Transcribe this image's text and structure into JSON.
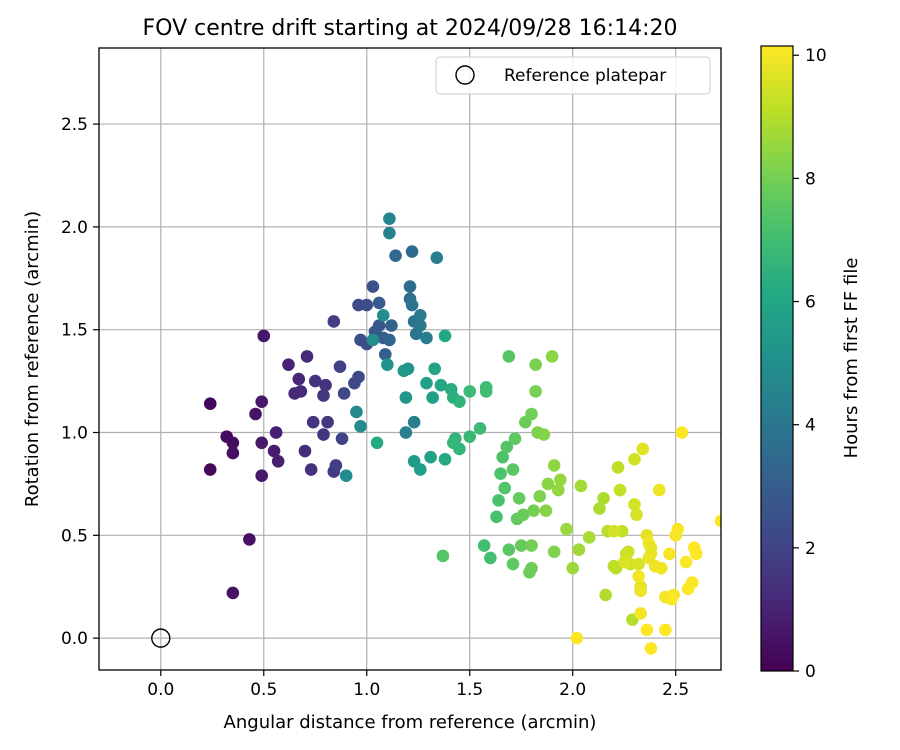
{
  "chart_data": {
    "type": "scatter",
    "title": "FOV centre drift starting at 2024/09/28 16:14:20",
    "xlabel": "Angular distance from reference (arcmin)",
    "ylabel": "Rotation from reference (arcmin)",
    "xlim": [
      -0.3,
      2.72
    ],
    "ylim": [
      -0.155,
      2.87
    ],
    "xticks": [
      0.0,
      0.5,
      1.0,
      1.5,
      2.0,
      2.5
    ],
    "yticks": [
      0.0,
      0.5,
      1.0,
      1.5,
      2.0,
      2.5
    ],
    "grid": true,
    "legend": {
      "placement": "top-right",
      "entries": [
        "Reference platepar"
      ]
    },
    "reference_point": {
      "x": 0.0,
      "y": 0.0,
      "marker": "open-circle",
      "label": "Reference platepar"
    },
    "colorbar": {
      "label": "Hours from first FF file",
      "min": 0,
      "max": 10.15,
      "ticks": [
        0,
        2,
        4,
        6,
        8,
        10
      ],
      "colormap": "viridis"
    },
    "points": [
      [
        0.24,
        1.14,
        0.15
      ],
      [
        0.24,
        0.82,
        0.2
      ],
      [
        0.32,
        0.98,
        0.3
      ],
      [
        0.35,
        0.95,
        0.35
      ],
      [
        0.35,
        0.9,
        0.4
      ],
      [
        0.43,
        0.48,
        0.45
      ],
      [
        0.35,
        0.22,
        0.5
      ],
      [
        0.46,
        1.09,
        0.55
      ],
      [
        0.49,
        1.15,
        0.65
      ],
      [
        0.5,
        1.47,
        0.6
      ],
      [
        0.49,
        0.95,
        0.7
      ],
      [
        0.49,
        0.79,
        0.75
      ],
      [
        0.55,
        0.91,
        0.8
      ],
      [
        0.56,
        1.0,
        0.85
      ],
      [
        0.57,
        0.86,
        0.9
      ],
      [
        0.62,
        1.33,
        1.0
      ],
      [
        0.65,
        1.19,
        1.1
      ],
      [
        0.67,
        1.26,
        1.15
      ],
      [
        0.68,
        1.2,
        1.25
      ],
      [
        0.7,
        0.91,
        1.3
      ],
      [
        0.71,
        1.37,
        1.2
      ],
      [
        0.73,
        0.82,
        1.35
      ],
      [
        0.75,
        1.25,
        1.45
      ],
      [
        0.74,
        1.05,
        1.5
      ],
      [
        0.79,
        0.99,
        1.55
      ],
      [
        0.79,
        1.18,
        1.6
      ],
      [
        0.8,
        1.23,
        1.5
      ],
      [
        0.81,
        1.05,
        1.65
      ],
      [
        0.84,
        0.81,
        1.7
      ],
      [
        0.85,
        0.84,
        1.85
      ],
      [
        0.84,
        1.54,
        1.8
      ],
      [
        0.87,
        1.32,
        1.9
      ],
      [
        0.88,
        0.97,
        2.0
      ],
      [
        0.89,
        1.19,
        2.1
      ],
      [
        0.94,
        1.24,
        2.2
      ],
      [
        0.96,
        1.27,
        2.25
      ],
      [
        0.96,
        1.62,
        2.3
      ],
      [
        0.97,
        1.45,
        2.4
      ],
      [
        1.0,
        1.62,
        2.35
      ],
      [
        1.0,
        1.43,
        2.45
      ],
      [
        1.03,
        1.71,
        2.6
      ],
      [
        1.04,
        1.49,
        2.7
      ],
      [
        1.06,
        1.52,
        2.8
      ],
      [
        1.06,
        1.63,
        2.9
      ],
      [
        1.08,
        1.46,
        3.0
      ],
      [
        1.09,
        1.38,
        3.1
      ],
      [
        1.12,
        1.52,
        3.2
      ],
      [
        1.11,
        1.45,
        3.3
      ],
      [
        1.14,
        1.86,
        3.4
      ],
      [
        1.22,
        1.88,
        3.5
      ],
      [
        1.21,
        1.71,
        3.6
      ],
      [
        1.21,
        1.65,
        3.7
      ],
      [
        1.22,
        1.62,
        3.8
      ],
      [
        1.23,
        1.54,
        3.85
      ],
      [
        1.24,
        1.48,
        3.9
      ],
      [
        1.26,
        1.52,
        4.0
      ],
      [
        1.26,
        1.57,
        4.1
      ],
      [
        1.29,
        1.46,
        4.2
      ],
      [
        1.34,
        1.85,
        4.25
      ],
      [
        1.23,
        1.05,
        4.3
      ],
      [
        1.19,
        1.0,
        4.4
      ],
      [
        1.11,
        1.97,
        4.5
      ],
      [
        1.11,
        2.04,
        4.6
      ],
      [
        0.95,
        1.1,
        4.7
      ],
      [
        0.9,
        0.79,
        4.8
      ],
      [
        0.97,
        1.03,
        4.9
      ],
      [
        1.03,
        1.45,
        4.95
      ],
      [
        1.08,
        1.57,
        5.0
      ],
      [
        1.1,
        1.33,
        5.1
      ],
      [
        1.2,
        1.31,
        5.2
      ],
      [
        1.19,
        1.17,
        5.3
      ],
      [
        1.18,
        1.3,
        5.4
      ],
      [
        1.23,
        0.86,
        5.5
      ],
      [
        1.26,
        0.82,
        5.6
      ],
      [
        1.29,
        1.24,
        5.7
      ],
      [
        1.32,
        1.17,
        5.75
      ],
      [
        1.31,
        0.88,
        5.8
      ],
      [
        1.33,
        1.31,
        5.9
      ],
      [
        1.36,
        1.23,
        6.0
      ],
      [
        1.38,
        1.47,
        6.1
      ],
      [
        1.38,
        0.87,
        6.15
      ],
      [
        1.05,
        0.95,
        6.2
      ],
      [
        1.41,
        1.21,
        6.3
      ],
      [
        1.42,
        1.17,
        6.4
      ],
      [
        1.43,
        0.97,
        6.5
      ],
      [
        1.45,
        1.15,
        6.55
      ],
      [
        1.45,
        0.92,
        6.6
      ],
      [
        1.42,
        0.95,
        6.7
      ],
      [
        1.5,
        0.98,
        6.8
      ],
      [
        1.5,
        1.2,
        6.85
      ],
      [
        1.55,
        1.02,
        6.9
      ],
      [
        1.58,
        1.22,
        6.95
      ],
      [
        1.58,
        1.2,
        7.0
      ],
      [
        1.57,
        0.45,
        7.05
      ],
      [
        1.6,
        0.39,
        7.1
      ],
      [
        1.63,
        0.59,
        7.15
      ],
      [
        1.64,
        0.67,
        7.2
      ],
      [
        1.65,
        0.8,
        7.25
      ],
      [
        1.66,
        0.88,
        7.3
      ],
      [
        1.67,
        0.73,
        7.35
      ],
      [
        1.68,
        0.93,
        7.4
      ],
      [
        1.69,
        1.37,
        7.45
      ],
      [
        1.69,
        0.43,
        7.5
      ],
      [
        1.71,
        0.82,
        7.55
      ],
      [
        1.72,
        0.97,
        7.6
      ],
      [
        1.73,
        0.58,
        7.65
      ],
      [
        1.74,
        0.68,
        7.7
      ],
      [
        1.75,
        0.45,
        7.75
      ],
      [
        1.76,
        0.6,
        7.8
      ],
      [
        1.77,
        1.05,
        7.85
      ],
      [
        1.79,
        0.32,
        7.9
      ],
      [
        1.8,
        1.09,
        7.95
      ],
      [
        1.81,
        0.62,
        8.0
      ],
      [
        1.82,
        1.2,
        8.05
      ],
      [
        1.82,
        1.33,
        8.1
      ],
      [
        1.83,
        1.0,
        8.15
      ],
      [
        1.84,
        0.69,
        8.2
      ],
      [
        1.86,
        0.99,
        8.25
      ],
      [
        1.87,
        0.62,
        8.3
      ],
      [
        1.88,
        0.75,
        8.35
      ],
      [
        1.9,
        1.37,
        8.4
      ],
      [
        1.91,
        0.84,
        8.45
      ],
      [
        1.93,
        0.72,
        8.5
      ],
      [
        1.94,
        0.77,
        8.55
      ],
      [
        1.97,
        0.53,
        8.6
      ],
      [
        2.0,
        0.34,
        8.65
      ],
      [
        2.03,
        0.43,
        8.7
      ],
      [
        2.04,
        0.74,
        8.75
      ],
      [
        2.08,
        0.49,
        8.8
      ],
      [
        2.13,
        0.63,
        8.85
      ],
      [
        2.15,
        0.68,
        8.9
      ],
      [
        2.16,
        0.21,
        8.95
      ],
      [
        2.17,
        0.52,
        9.0
      ],
      [
        2.2,
        0.35,
        9.05
      ],
      [
        2.21,
        0.34,
        9.1
      ],
      [
        2.22,
        0.83,
        9.15
      ],
      [
        2.23,
        0.72,
        9.2
      ],
      [
        2.24,
        0.52,
        9.25
      ],
      [
        2.26,
        0.41,
        9.3
      ],
      [
        2.27,
        0.42,
        9.35
      ],
      [
        2.28,
        0.36,
        9.4
      ],
      [
        2.3,
        0.87,
        9.45
      ],
      [
        2.3,
        0.65,
        9.5
      ],
      [
        2.31,
        0.6,
        9.55
      ],
      [
        2.32,
        0.36,
        9.6
      ],
      [
        2.33,
        0.25,
        9.65
      ],
      [
        2.34,
        0.92,
        9.7
      ],
      [
        2.36,
        0.5,
        9.75
      ],
      [
        2.37,
        0.39,
        9.8
      ],
      [
        2.38,
        0.41,
        9.85
      ],
      [
        2.4,
        0.35,
        9.9
      ],
      [
        2.42,
        0.72,
        9.92
      ],
      [
        2.43,
        0.34,
        9.95
      ],
      [
        2.45,
        0.2,
        9.98
      ],
      [
        2.47,
        0.41,
        10.0
      ],
      [
        2.49,
        0.21,
        10.02
      ],
      [
        2.5,
        0.5,
        10.04
      ],
      [
        2.51,
        0.53,
        10.06
      ],
      [
        2.53,
        1.0,
        10.08
      ],
      [
        2.55,
        0.37,
        10.1
      ],
      [
        2.56,
        0.24,
        10.12
      ],
      [
        2.58,
        0.27,
        10.13
      ],
      [
        2.59,
        0.44,
        10.14
      ],
      [
        2.6,
        0.41,
        10.15
      ],
      [
        2.72,
        0.57,
        10.15
      ],
      [
        2.2,
        0.52,
        9.5
      ],
      [
        2.25,
        0.37,
        9.6
      ],
      [
        2.02,
        0.0,
        10.15
      ],
      [
        2.29,
        0.09,
        9.0
      ],
      [
        2.33,
        0.12,
        10.0
      ],
      [
        2.36,
        0.04,
        10.15
      ],
      [
        2.38,
        -0.05,
        10.15
      ],
      [
        2.45,
        0.04,
        10.15
      ],
      [
        2.48,
        0.19,
        10.1
      ],
      [
        2.32,
        0.3,
        10.0
      ],
      [
        2.33,
        0.23,
        9.9
      ],
      [
        2.37,
        0.46,
        10.0
      ],
      [
        2.38,
        0.44,
        9.8
      ],
      [
        1.8,
        0.34,
        7.9
      ],
      [
        1.71,
        0.36,
        7.6
      ],
      [
        1.91,
        0.42,
        8.2
      ],
      [
        1.37,
        0.4,
        7.4
      ],
      [
        1.8,
        0.45,
        8.0
      ]
    ]
  }
}
